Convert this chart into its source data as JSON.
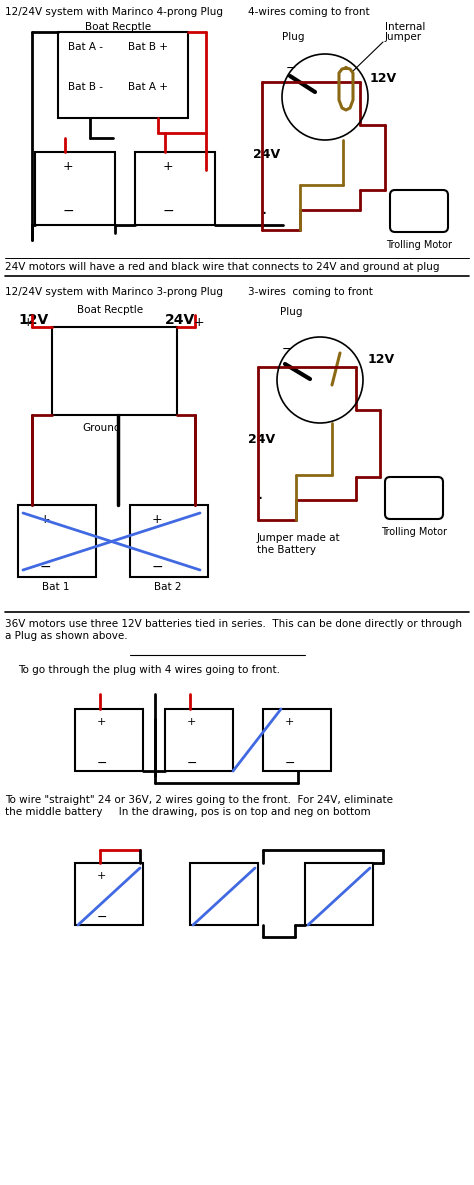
{
  "bg_color": "#ffffff",
  "section1_title": "12/24V system with Marinco 4-prong Plug",
  "section1_subtitle": "4-wires coming to front",
  "section2_text": "24V motors will have a red and black wire that connects to 24V and ground at plug",
  "section3_title": "12/24V system with Marinco 3-prong Plug",
  "section3_subtitle": "3-wires  coming to front",
  "section4_text": "36V motors use three 12V batteries tied in series.  This can be done directly or through\na Plug as shown above.",
  "section4_sub": "To go through the plug with 4 wires going to front.",
  "section5_text": "To wire \"straight\" 24 or 36V, 2 wires going to the front.  For 24V, eliminate\nthe middle battery     In the drawing, pos is on top and neg on bottom",
  "red": "#cc0000",
  "black": "#000000",
  "dark_red": "#800000",
  "brown": "#8B6914",
  "blue": "#4169E1"
}
